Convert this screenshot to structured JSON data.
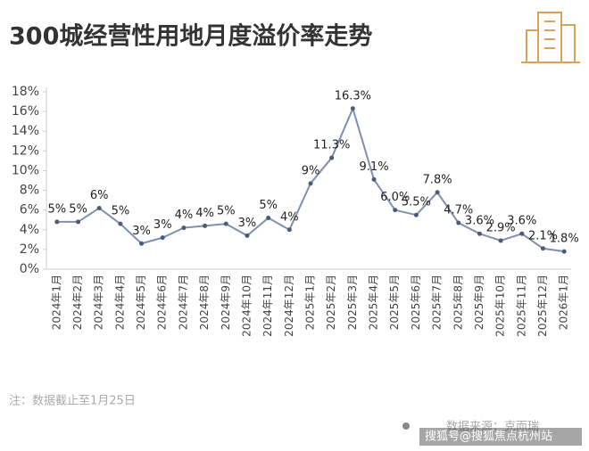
{
  "chart_data": {
    "type": "line",
    "title": "300城经营性用地月度溢价率走势",
    "categories": [
      "2024年1月",
      "2024年2月",
      "2024年3月",
      "2024年4月",
      "2024年5月",
      "2024年6月",
      "2024年7月",
      "2024年8月",
      "2024年9月",
      "2024年10月",
      "2024年11月",
      "2024年12月",
      "2025年1月",
      "2025年2月",
      "2025年3月",
      "2025年4月",
      "2025年5月",
      "2025年6月",
      "2025年7月",
      "2025年8月",
      "2025年9月",
      "2025年10月",
      "2025年11月",
      "2025年12月",
      "2026年1月"
    ],
    "series": [
      {
        "color": "#7f8fae",
        "values": [
          4.8,
          4.8,
          6.2,
          4.6,
          2.6,
          3.2,
          4.2,
          4.4,
          4.6,
          3.4,
          5.2,
          4.0,
          8.7,
          11.3,
          16.3,
          9.1,
          6.0,
          5.5,
          7.8,
          4.7,
          3.6,
          2.9,
          3.6,
          2.1,
          1.8
        ],
        "value_labels": [
          "5%",
          "5%",
          "6%",
          "5%",
          "3%",
          "3%",
          "4%",
          "4%",
          "5%",
          "3%",
          "5%",
          "4%",
          "9%",
          "11.3%",
          "16.3%",
          "9.1%",
          "6.0%",
          "5.5%",
          "7.8%",
          "4.7%",
          "3.6%",
          "2.9%",
          "3.6%",
          "2.1%",
          "1.8%"
        ]
      }
    ],
    "ylim": [
      0,
      18
    ],
    "yticks": [
      {
        "value": 0,
        "label": "0%"
      },
      {
        "value": 2,
        "label": "2%"
      },
      {
        "value": 4,
        "label": "4%"
      },
      {
        "value": 6,
        "label": "6%"
      },
      {
        "value": 8,
        "label": "8%"
      },
      {
        "value": 10,
        "label": "10%"
      },
      {
        "value": 12,
        "label": "12%"
      },
      {
        "value": 14,
        "label": "14%"
      },
      {
        "value": 16,
        "label": "16%"
      },
      {
        "value": 18,
        "label": "18%"
      }
    ],
    "grid": false,
    "footnote": "注：数据截止至1月25日",
    "source": "数据来源：克而瑞",
    "watermark": "搜狐号@搜狐焦点杭州站"
  }
}
